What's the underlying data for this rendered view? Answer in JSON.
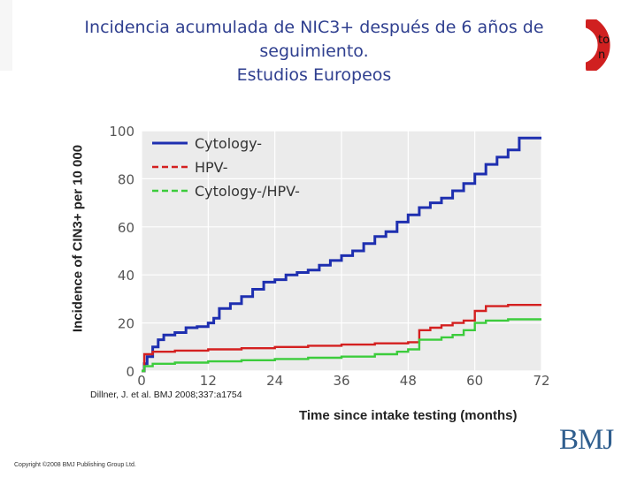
{
  "slide": {
    "title_lines": [
      "Incidencia acumulada de NIC3+ después de  6 años de",
      "seguimiento.",
      "Estudios Europeos"
    ],
    "corner_text": [
      "to",
      "n"
    ],
    "citation": "Dillner, J. et al. BMJ 2008;337:a1754",
    "copyright": "Copyright ©2008 BMJ Publishing Group Ltd.",
    "publisher_logo": "BMJ"
  },
  "chart_data": {
    "type": "line",
    "xlabel": "Time since intake testing (months)",
    "ylabel": "Incidence of CIN3+ per 10 000",
    "xlim": [
      0,
      72
    ],
    "ylim": [
      0,
      100
    ],
    "xticks": [
      0,
      12,
      24,
      36,
      48,
      60,
      72
    ],
    "yticks": [
      0,
      20,
      40,
      60,
      80,
      100
    ],
    "legend_position": "top-left",
    "series": [
      {
        "name": "Cytology-",
        "color": "#1e2fb0",
        "style": "solid",
        "points": [
          [
            0,
            0
          ],
          [
            0.5,
            3
          ],
          [
            1,
            6
          ],
          [
            2,
            10
          ],
          [
            3,
            13
          ],
          [
            4,
            15
          ],
          [
            6,
            16
          ],
          [
            8,
            18
          ],
          [
            10,
            18.5
          ],
          [
            12,
            20
          ],
          [
            13,
            22
          ],
          [
            14,
            26
          ],
          [
            16,
            28
          ],
          [
            18,
            31
          ],
          [
            20,
            34
          ],
          [
            22,
            37
          ],
          [
            24,
            38
          ],
          [
            26,
            40
          ],
          [
            28,
            41
          ],
          [
            30,
            42
          ],
          [
            32,
            44
          ],
          [
            34,
            46
          ],
          [
            36,
            48
          ],
          [
            38,
            50
          ],
          [
            40,
            53
          ],
          [
            42,
            56
          ],
          [
            44,
            58
          ],
          [
            46,
            62
          ],
          [
            48,
            65
          ],
          [
            50,
            68
          ],
          [
            52,
            70
          ],
          [
            54,
            72
          ],
          [
            56,
            75
          ],
          [
            58,
            78
          ],
          [
            60,
            82
          ],
          [
            62,
            86
          ],
          [
            64,
            89
          ],
          [
            66,
            92
          ],
          [
            68,
            97
          ],
          [
            72,
            97
          ]
        ]
      },
      {
        "name": "HPV-",
        "color": "#d42020",
        "style": "dashed",
        "points": [
          [
            0,
            0
          ],
          [
            0.5,
            7
          ],
          [
            2,
            8
          ],
          [
            6,
            8.5
          ],
          [
            12,
            9
          ],
          [
            18,
            9.5
          ],
          [
            24,
            10
          ],
          [
            30,
            10.5
          ],
          [
            36,
            11
          ],
          [
            42,
            11.5
          ],
          [
            48,
            12
          ],
          [
            50,
            17
          ],
          [
            52,
            18
          ],
          [
            54,
            19
          ],
          [
            56,
            20
          ],
          [
            58,
            21
          ],
          [
            60,
            25
          ],
          [
            62,
            27
          ],
          [
            66,
            27.5
          ],
          [
            72,
            27.5
          ]
        ]
      },
      {
        "name": "Cytology-/HPV-",
        "color": "#3ccc3c",
        "style": "dashed",
        "points": [
          [
            0,
            0
          ],
          [
            0.5,
            2
          ],
          [
            2,
            3
          ],
          [
            6,
            3.5
          ],
          [
            12,
            4
          ],
          [
            18,
            4.5
          ],
          [
            24,
            5
          ],
          [
            30,
            5.5
          ],
          [
            36,
            6
          ],
          [
            40,
            6
          ],
          [
            42,
            7
          ],
          [
            46,
            8
          ],
          [
            48,
            9
          ],
          [
            50,
            13
          ],
          [
            54,
            14
          ],
          [
            56,
            15
          ],
          [
            58,
            17
          ],
          [
            60,
            20
          ],
          [
            62,
            21
          ],
          [
            66,
            21.5
          ],
          [
            72,
            21.5
          ]
        ]
      }
    ]
  }
}
